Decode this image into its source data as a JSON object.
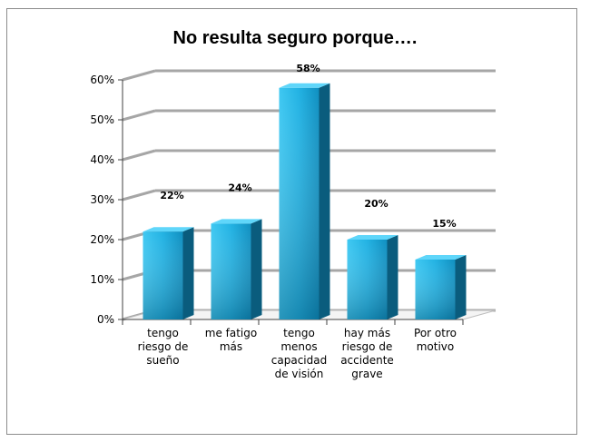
{
  "chart_data": {
    "type": "bar",
    "title": "No resulta seguro porque….",
    "categories": [
      [
        "tengo",
        "riesgo de",
        "sueño"
      ],
      [
        "me fatigo",
        "más"
      ],
      [
        "tengo",
        "menos",
        "capacidad",
        "de visión"
      ],
      [
        "hay más",
        "riesgo de",
        "accidente",
        "grave"
      ],
      [
        "Por otro",
        "motivo"
      ]
    ],
    "values": [
      22,
      24,
      58,
      20,
      15
    ],
    "data_labels": [
      "22%",
      "24%",
      "58%",
      "20%",
      "15%"
    ],
    "yticks": [
      "0%",
      "10%",
      "20%",
      "30%",
      "40%",
      "50%",
      "60%"
    ],
    "ylim": [
      0,
      60
    ],
    "grid": true,
    "bar_color": "#1aa9d8",
    "bar_dark_color": "#0a5c7d",
    "grid_color": "#a6a6a6"
  }
}
